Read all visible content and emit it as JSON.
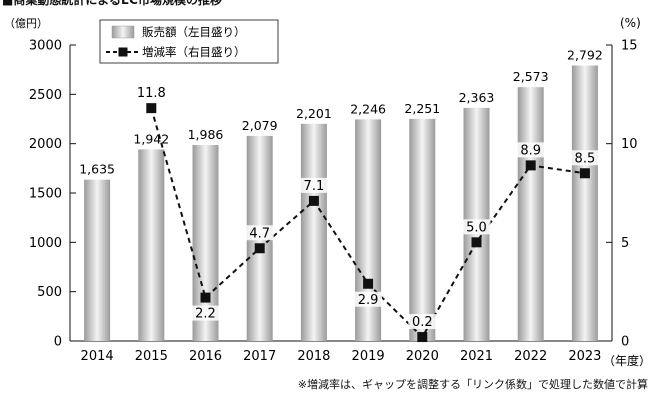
{
  "header": {
    "title": "■商業動態統計によるEC市場規模の推移"
  },
  "footnote": "※増減率は、ギャップを調整する「リンク係数」で処理した数値で計算",
  "chart_data": {
    "type": "bar+line",
    "categories": [
      "2014",
      "2015",
      "2016",
      "2017",
      "2018",
      "2019",
      "2020",
      "2021",
      "2022",
      "2023"
    ],
    "series": [
      {
        "name": "販売額（左目盛り）",
        "type": "bar",
        "axis": "left",
        "values": [
          1635,
          1942,
          1986,
          2079,
          2201,
          2246,
          2251,
          2363,
          2573,
          2792
        ],
        "labels": [
          "1,635",
          "1,942",
          "1,986",
          "2,079",
          "2,201",
          "2,246",
          "2,251",
          "2,363",
          "2,573",
          "2,792"
        ]
      },
      {
        "name": "増減率（右目盛り）",
        "type": "line",
        "axis": "right",
        "values": [
          null,
          11.8,
          2.2,
          4.7,
          7.1,
          2.9,
          0.2,
          5.0,
          8.9,
          8.5
        ],
        "labels": [
          "",
          "11.8",
          "2.2",
          "4.7",
          "7.1",
          "2.9",
          "0.2",
          "5.0",
          "8.9",
          "8.5"
        ]
      }
    ],
    "left_axis": {
      "unit": "（億円）",
      "ylim": [
        0,
        3000
      ],
      "ticks": [
        0,
        500,
        1000,
        1500,
        2000,
        2500,
        3000
      ]
    },
    "right_axis": {
      "unit": "(%)",
      "ylim": [
        0,
        15
      ],
      "ticks": [
        0,
        5,
        10,
        15
      ]
    },
    "xlabel": "（年度）",
    "legend_position": "top-left",
    "colors": {
      "bar_edge": "#9a9a9a",
      "bar_center": "#f4f4f4",
      "line": "#111111"
    }
  }
}
